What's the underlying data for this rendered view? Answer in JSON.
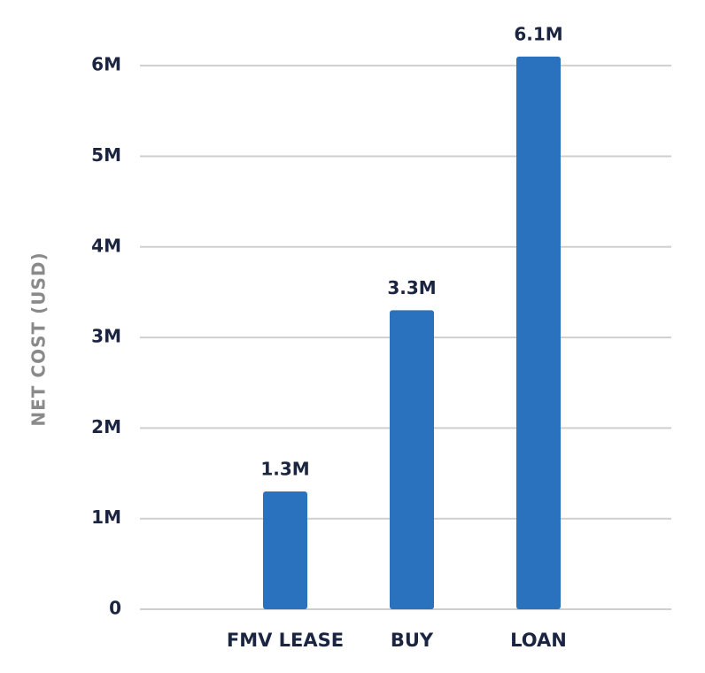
{
  "chart_data": {
    "type": "bar",
    "y_label": "NET COST (USD)",
    "categories": [
      "FMV LEASE",
      "BUY",
      "LOAN"
    ],
    "values": [
      1300000,
      3300000,
      6100000
    ],
    "value_labels": [
      "1.3M",
      "3.3M",
      "6.1M"
    ],
    "color": "#2a72bd",
    "ylim": [
      0,
      6500000
    ],
    "yticks": [
      0,
      {
        "value": 1000000,
        "label": "1M"
      },
      {
        "value": 2000000,
        "label": "2M"
      },
      {
        "value": 3000000,
        "label": "3M"
      },
      {
        "value": 4000000,
        "label": "4M"
      },
      {
        "value": 5000000,
        "label": "5M"
      },
      {
        "value": 6000000,
        "label": "6M"
      }
    ],
    "grid": true
  }
}
